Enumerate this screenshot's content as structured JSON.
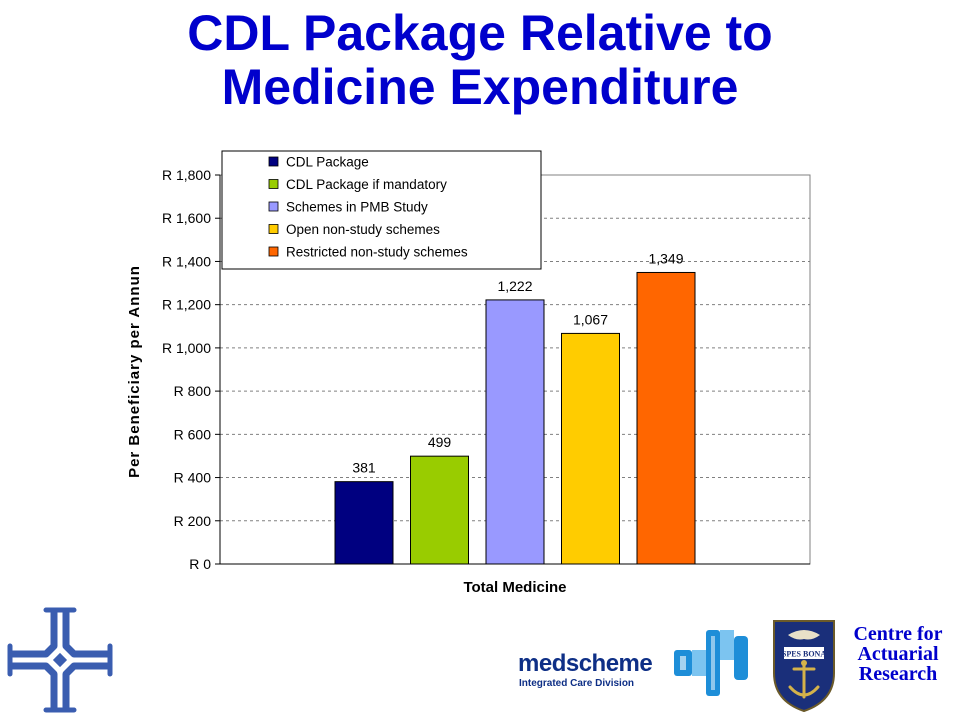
{
  "title": {
    "line1": "CDL Package Relative to",
    "line2": "Medicine Expenditure"
  },
  "chart_data": {
    "type": "bar",
    "categories": [
      "Total Medicine"
    ],
    "xlabel": "Total Medicine",
    "ylabel": "Per Beneficiary per Annun",
    "ylim": [
      0,
      1800
    ],
    "y_tick_labels": [
      "R 0",
      "R 200",
      "R 400",
      "R 600",
      "R 800",
      "R 1,000",
      "R 1,200",
      "R 1,400",
      "R 1,600",
      "R 1,800"
    ],
    "y_tick_values": [
      0,
      200,
      400,
      600,
      800,
      1000,
      1200,
      1400,
      1600,
      1800
    ],
    "grid": true,
    "legend_position": "top-left",
    "series": [
      {
        "name": "CDL Package",
        "values": [
          381
        ],
        "label": "381",
        "color": "#000080"
      },
      {
        "name": "CDL Package if mandatory",
        "values": [
          499
        ],
        "label": "499",
        "color": "#99cc00"
      },
      {
        "name": "Schemes in PMB Study",
        "values": [
          1222
        ],
        "label": "1,222",
        "color": "#9999ff"
      },
      {
        "name": "Open non-study schemes",
        "values": [
          1067
        ],
        "label": "1,067",
        "color": "#ffcc00"
      },
      {
        "name": "Restricted non-study schemes",
        "values": [
          1349
        ],
        "label": "1,349",
        "color": "#ff6600"
      }
    ]
  },
  "logos": {
    "medscheme_word": "medscheme",
    "medscheme_sub": "Integrated Care Division",
    "crest_motto": "SPES BONA",
    "centre": [
      "Centre for",
      "Actuarial",
      "Research"
    ]
  }
}
